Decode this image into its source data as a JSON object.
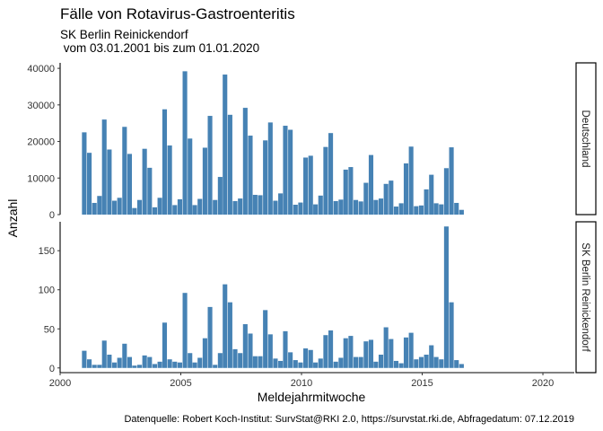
{
  "chart_data": {
    "type": "bar",
    "title": "Fälle von Rotavirus-Gastroenteritis",
    "subtitle_line1": "SK Berlin Reinickendorf",
    "subtitle_line2": " vom 03.01.2001 bis zum 01.01.2020",
    "xlabel": "Meldejahrmitwoche",
    "ylabel": "Anzahl",
    "caption": "Datenquelle: Robert Koch-Institut: SurvStat@RKI 2.0, https://survstat.rki.de, Abfragedatum: 07.12.2019",
    "xlim": [
      2000,
      2021.3
    ],
    "xticks": [
      2000,
      2005,
      2010,
      2015,
      2020
    ],
    "bar_color": "#4682B4",
    "grid": false,
    "bar_width_years": 0.19,
    "x": [
      2001.0,
      2001.21,
      2001.42,
      2001.63,
      2001.83,
      2002.04,
      2002.25,
      2002.46,
      2002.67,
      2002.88,
      2003.08,
      2003.29,
      2003.5,
      2003.71,
      2003.92,
      2004.13,
      2004.33,
      2004.54,
      2004.75,
      2004.96,
      2005.17,
      2005.38,
      2005.58,
      2005.79,
      2006.0,
      2006.21,
      2006.42,
      2006.63,
      2006.83,
      2007.04,
      2007.25,
      2007.46,
      2007.67,
      2007.88,
      2008.08,
      2008.29,
      2008.5,
      2008.71,
      2008.92,
      2009.13,
      2009.33,
      2009.54,
      2009.75,
      2009.96,
      2010.17,
      2010.38,
      2010.58,
      2010.79,
      2011.0,
      2011.21,
      2011.42,
      2011.63,
      2011.83,
      2012.04,
      2012.25,
      2012.46,
      2012.67,
      2012.88,
      2013.08,
      2013.29,
      2013.5,
      2013.71,
      2013.92,
      2014.13,
      2014.33,
      2014.54,
      2014.75,
      2014.96,
      2015.17,
      2015.38,
      2015.58,
      2015.79,
      2016.0,
      2016.21,
      2016.42,
      2016.63,
      2016.83,
      2017.04,
      2017.25,
      2017.46,
      2017.67,
      2017.88,
      2018.08,
      2018.29,
      2018.5,
      2018.71,
      2018.92,
      2019.13,
      2019.33,
      2019.54,
      2019.75
    ],
    "panels": [
      {
        "strip": "Deutschland",
        "ylim": [
          0,
          41500
        ],
        "yticks": [
          0,
          10000,
          20000,
          30000,
          40000
        ],
        "values": [
          22500,
          16900,
          3200,
          5100,
          26000,
          17800,
          3800,
          4600,
          24000,
          16600,
          1800,
          4000,
          18000,
          12800,
          2000,
          4600,
          28800,
          18900,
          2600,
          4200,
          39200,
          20800,
          2600,
          4300,
          18300,
          27000,
          4000,
          10300,
          38300,
          27300,
          3700,
          4400,
          29200,
          21600,
          5400,
          5300,
          20300,
          25200,
          3800,
          5800,
          24300,
          23200,
          2700,
          3300,
          15600,
          16100,
          2800,
          5200,
          18500,
          22300,
          3700,
          4100,
          12300,
          13000,
          4000,
          3600,
          8700,
          16300,
          4000,
          4400,
          8400,
          9300,
          2200,
          3100,
          14000,
          18600,
          2300,
          2500,
          6900,
          10900,
          3100,
          2800,
          12700,
          18400,
          3200,
          1300,
          0,
          0,
          0,
          0,
          0,
          0,
          0,
          0,
          0,
          0,
          0,
          0,
          0,
          0,
          0
        ]
      },
      {
        "strip": "SK Berlin Reinickendorf",
        "ylim": [
          -6,
          187
        ],
        "yticks": [
          0,
          50,
          100,
          150
        ],
        "values": [
          22,
          11,
          4,
          4,
          35,
          17,
          7,
          13,
          31,
          14,
          3,
          4,
          16,
          14,
          5,
          8,
          58,
          11,
          8,
          7,
          96,
          19,
          7,
          13,
          38,
          78,
          4,
          19,
          107,
          84,
          24,
          19,
          56,
          44,
          15,
          15,
          74,
          43,
          12,
          9,
          47,
          20,
          10,
          7,
          25,
          23,
          7,
          12,
          42,
          48,
          8,
          13,
          38,
          41,
          14,
          14,
          34,
          36,
          8,
          17,
          52,
          37,
          9,
          6,
          39,
          45,
          11,
          14,
          17,
          29,
          14,
          11,
          181,
          84,
          10,
          5,
          0,
          0,
          0,
          0,
          0,
          0,
          0,
          0,
          0,
          0,
          0,
          0,
          0,
          0,
          0
        ]
      }
    ]
  }
}
